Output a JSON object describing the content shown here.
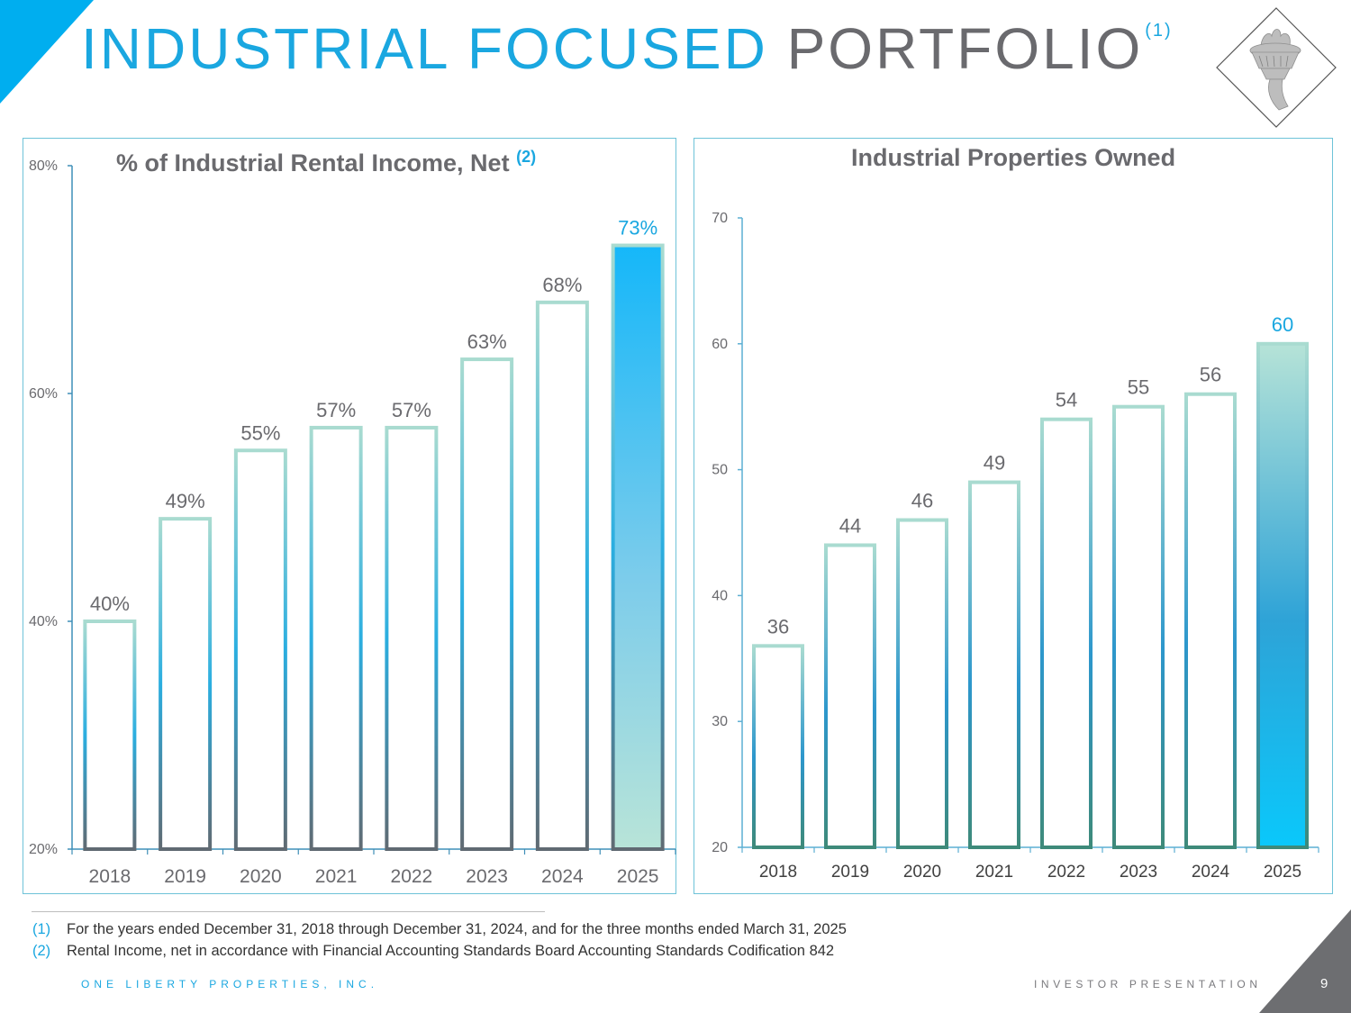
{
  "slide": {
    "title_accent": "INDUSTRIAL FOCUSED",
    "title_main": "PORTFOLIO",
    "title_footnote": "(1)",
    "logo": "torch-logo-icon",
    "footnotes": [
      {
        "num": "(1)",
        "text": "For the years ended December 31, 2018 through December 31, 2024, and for the three months ended March 31, 2025"
      },
      {
        "num": "(2)",
        "text": "Rental Income, net in accordance with Financial Accounting Standards Board Accounting Standards Codification 842"
      }
    ],
    "footer_company": "ONE LIBERTY PROPERTIES, INC.",
    "footer_doc": "INVESTOR PRESENTATION",
    "page_number": "9",
    "colors": {
      "accent": "#1AA7E0",
      "gray": "#6A6A6E",
      "teal_light": "#A8DCD1",
      "teal_dark": "#3E8A7A"
    }
  },
  "chart_data": [
    {
      "type": "bar",
      "title": "% of Industrial Rental Income, Net",
      "title_footnote": "(2)",
      "categories": [
        "2018",
        "2019",
        "2020",
        "2021",
        "2022",
        "2023",
        "2024",
        "2025"
      ],
      "values": [
        40,
        49,
        55,
        57,
        57,
        63,
        68,
        73
      ],
      "data_labels": [
        "40%",
        "49%",
        "55%",
        "57%",
        "57%",
        "63%",
        "68%",
        "73%"
      ],
      "highlight_index": 7,
      "xlabel": "",
      "ylabel": "",
      "ylim": [
        20,
        80
      ],
      "yticks": [
        20,
        40,
        60,
        80
      ],
      "ytick_labels": [
        "20%",
        "40%",
        "60%",
        "80%"
      ],
      "grid": false,
      "legend": "none"
    },
    {
      "type": "bar",
      "title": "Industrial Properties Owned",
      "categories": [
        "2018",
        "2019",
        "2020",
        "2021",
        "2022",
        "2023",
        "2024",
        "2025"
      ],
      "values": [
        36,
        44,
        46,
        49,
        54,
        55,
        56,
        60
      ],
      "data_labels": [
        "36",
        "44",
        "46",
        "49",
        "54",
        "55",
        "56",
        "60"
      ],
      "highlight_index": 7,
      "xlabel": "",
      "ylabel": "",
      "ylim": [
        20,
        70
      ],
      "yticks": [
        20,
        30,
        40,
        50,
        60,
        70
      ],
      "ytick_labels": [
        "20",
        "30",
        "40",
        "50",
        "60",
        "70"
      ],
      "grid": false,
      "legend": "none"
    }
  ]
}
